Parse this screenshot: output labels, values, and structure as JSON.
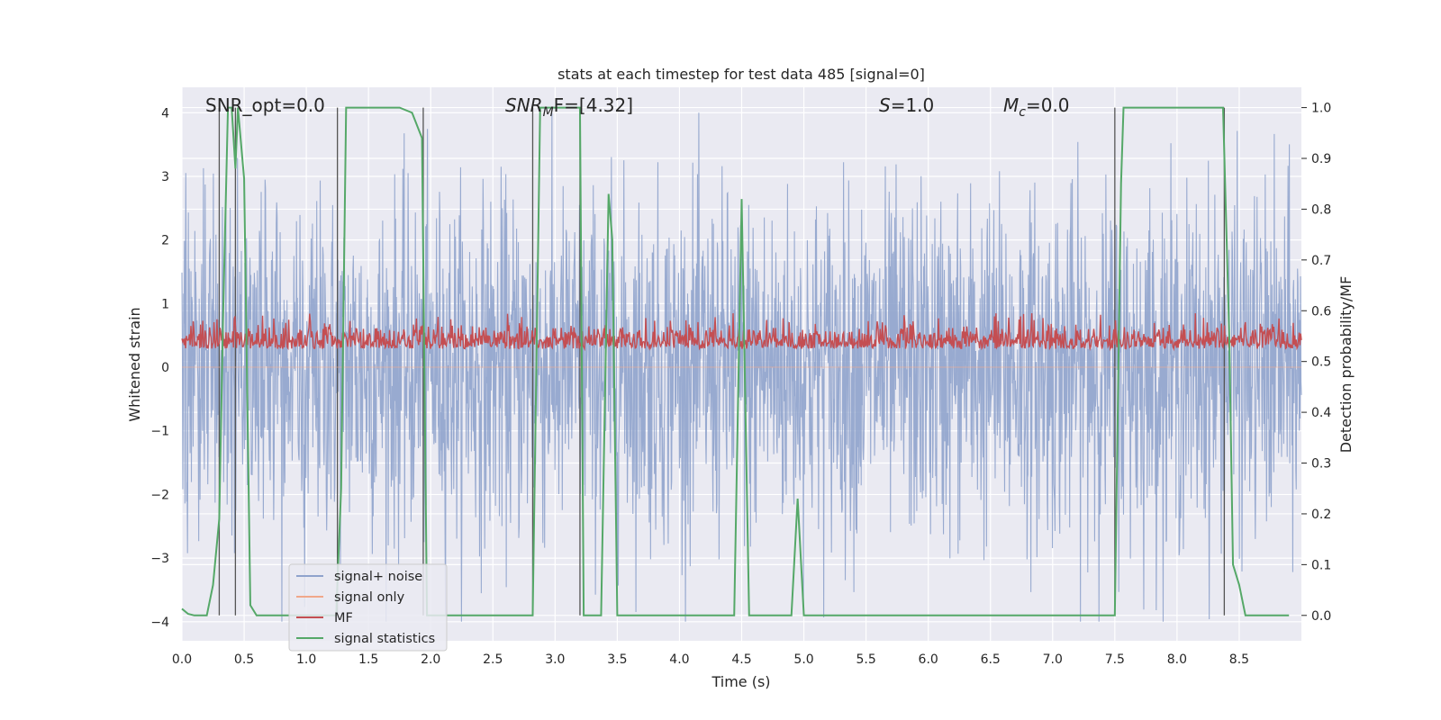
{
  "chart_data": {
    "type": "line",
    "title": "stats at each timestep for test data 485 [signal=0]",
    "xlabel": "Time (s)",
    "ylabel": "Whitened strain",
    "y2label": "Detection probability/MF",
    "xlim": [
      0.0,
      9.0
    ],
    "ylim": [
      -4.3,
      4.4
    ],
    "y2lim": [
      -0.05,
      1.04
    ],
    "x_ticks": [
      "0.0",
      "0.5",
      "1.0",
      "1.5",
      "2.0",
      "2.5",
      "3.0",
      "3.5",
      "4.0",
      "4.5",
      "5.0",
      "5.5",
      "6.0",
      "6.5",
      "7.0",
      "7.5",
      "8.0",
      "8.5"
    ],
    "y_ticks": [
      "4",
      "3",
      "2",
      "1",
      "0",
      "−1",
      "−2",
      "−3",
      "−4"
    ],
    "y2_ticks": [
      "1.0",
      "0.9",
      "0.8",
      "0.7",
      "0.6",
      "0.5",
      "0.4",
      "0.3",
      "0.2",
      "0.1",
      "0.0"
    ],
    "grid": true,
    "legend_position": "lower-left",
    "annotations": {
      "snr_opt": "SNR_opt=0.0",
      "snr_mf": "SNR",
      "snr_mf_sub": "M",
      "snr_mf_suffix": "F=[4.32]",
      "s_label": "S",
      "s_value": "=1.0",
      "mc_label": "M",
      "mc_sub": "c",
      "mc_value": "=0.0"
    },
    "series": [
      {
        "name": "signal+ noise",
        "color": "#8fa3cc",
        "note": "dense whitened noise, mostly within ±2.5, spikes to about ±4"
      },
      {
        "name": "signal only",
        "color": "#f0a88a",
        "values": "flat at 0 (no signal)"
      },
      {
        "name": "MF",
        "color": "#c44e52",
        "note": "matched-filter output on right axis, about 0.5 to 0.59"
      },
      {
        "name": "signal statistics",
        "color": "#55a868",
        "axis": "right",
        "x": [
          0.0,
          0.05,
          0.1,
          0.2,
          0.25,
          0.3,
          0.33,
          0.37,
          0.4,
          0.43,
          0.45,
          0.5,
          0.55,
          0.6,
          0.65,
          1.24,
          1.28,
          1.32,
          1.6,
          1.75,
          1.85,
          1.93,
          1.97,
          2.05,
          2.82,
          2.85,
          2.88,
          3.2,
          3.23,
          3.37,
          3.43,
          3.46,
          3.5,
          4.44,
          4.5,
          4.56,
          4.62,
          4.9,
          4.95,
          5.0,
          7.5,
          7.55,
          7.57,
          8.37,
          8.42,
          8.45,
          8.5,
          8.55,
          8.9
        ],
        "y": [
          0.013,
          0.003,
          0.0,
          0.0,
          0.06,
          0.19,
          0.58,
          1.0,
          1.0,
          0.88,
          1.0,
          0.86,
          0.02,
          0.0,
          0.0,
          0.0,
          0.25,
          1.0,
          1.0,
          1.0,
          0.99,
          0.94,
          0.0,
          0.0,
          0.0,
          0.5,
          1.0,
          1.0,
          0.0,
          0.0,
          0.83,
          0.74,
          0.0,
          0.0,
          0.82,
          0.0,
          0.0,
          0.0,
          0.23,
          0.0,
          0.0,
          0.85,
          1.0,
          1.0,
          0.55,
          0.1,
          0.06,
          0.0,
          0.0
        ]
      }
    ],
    "threshold_crossings_x": [
      0.3,
      0.43,
      1.25,
      1.94,
      2.82,
      3.2,
      7.5,
      8.38
    ]
  }
}
